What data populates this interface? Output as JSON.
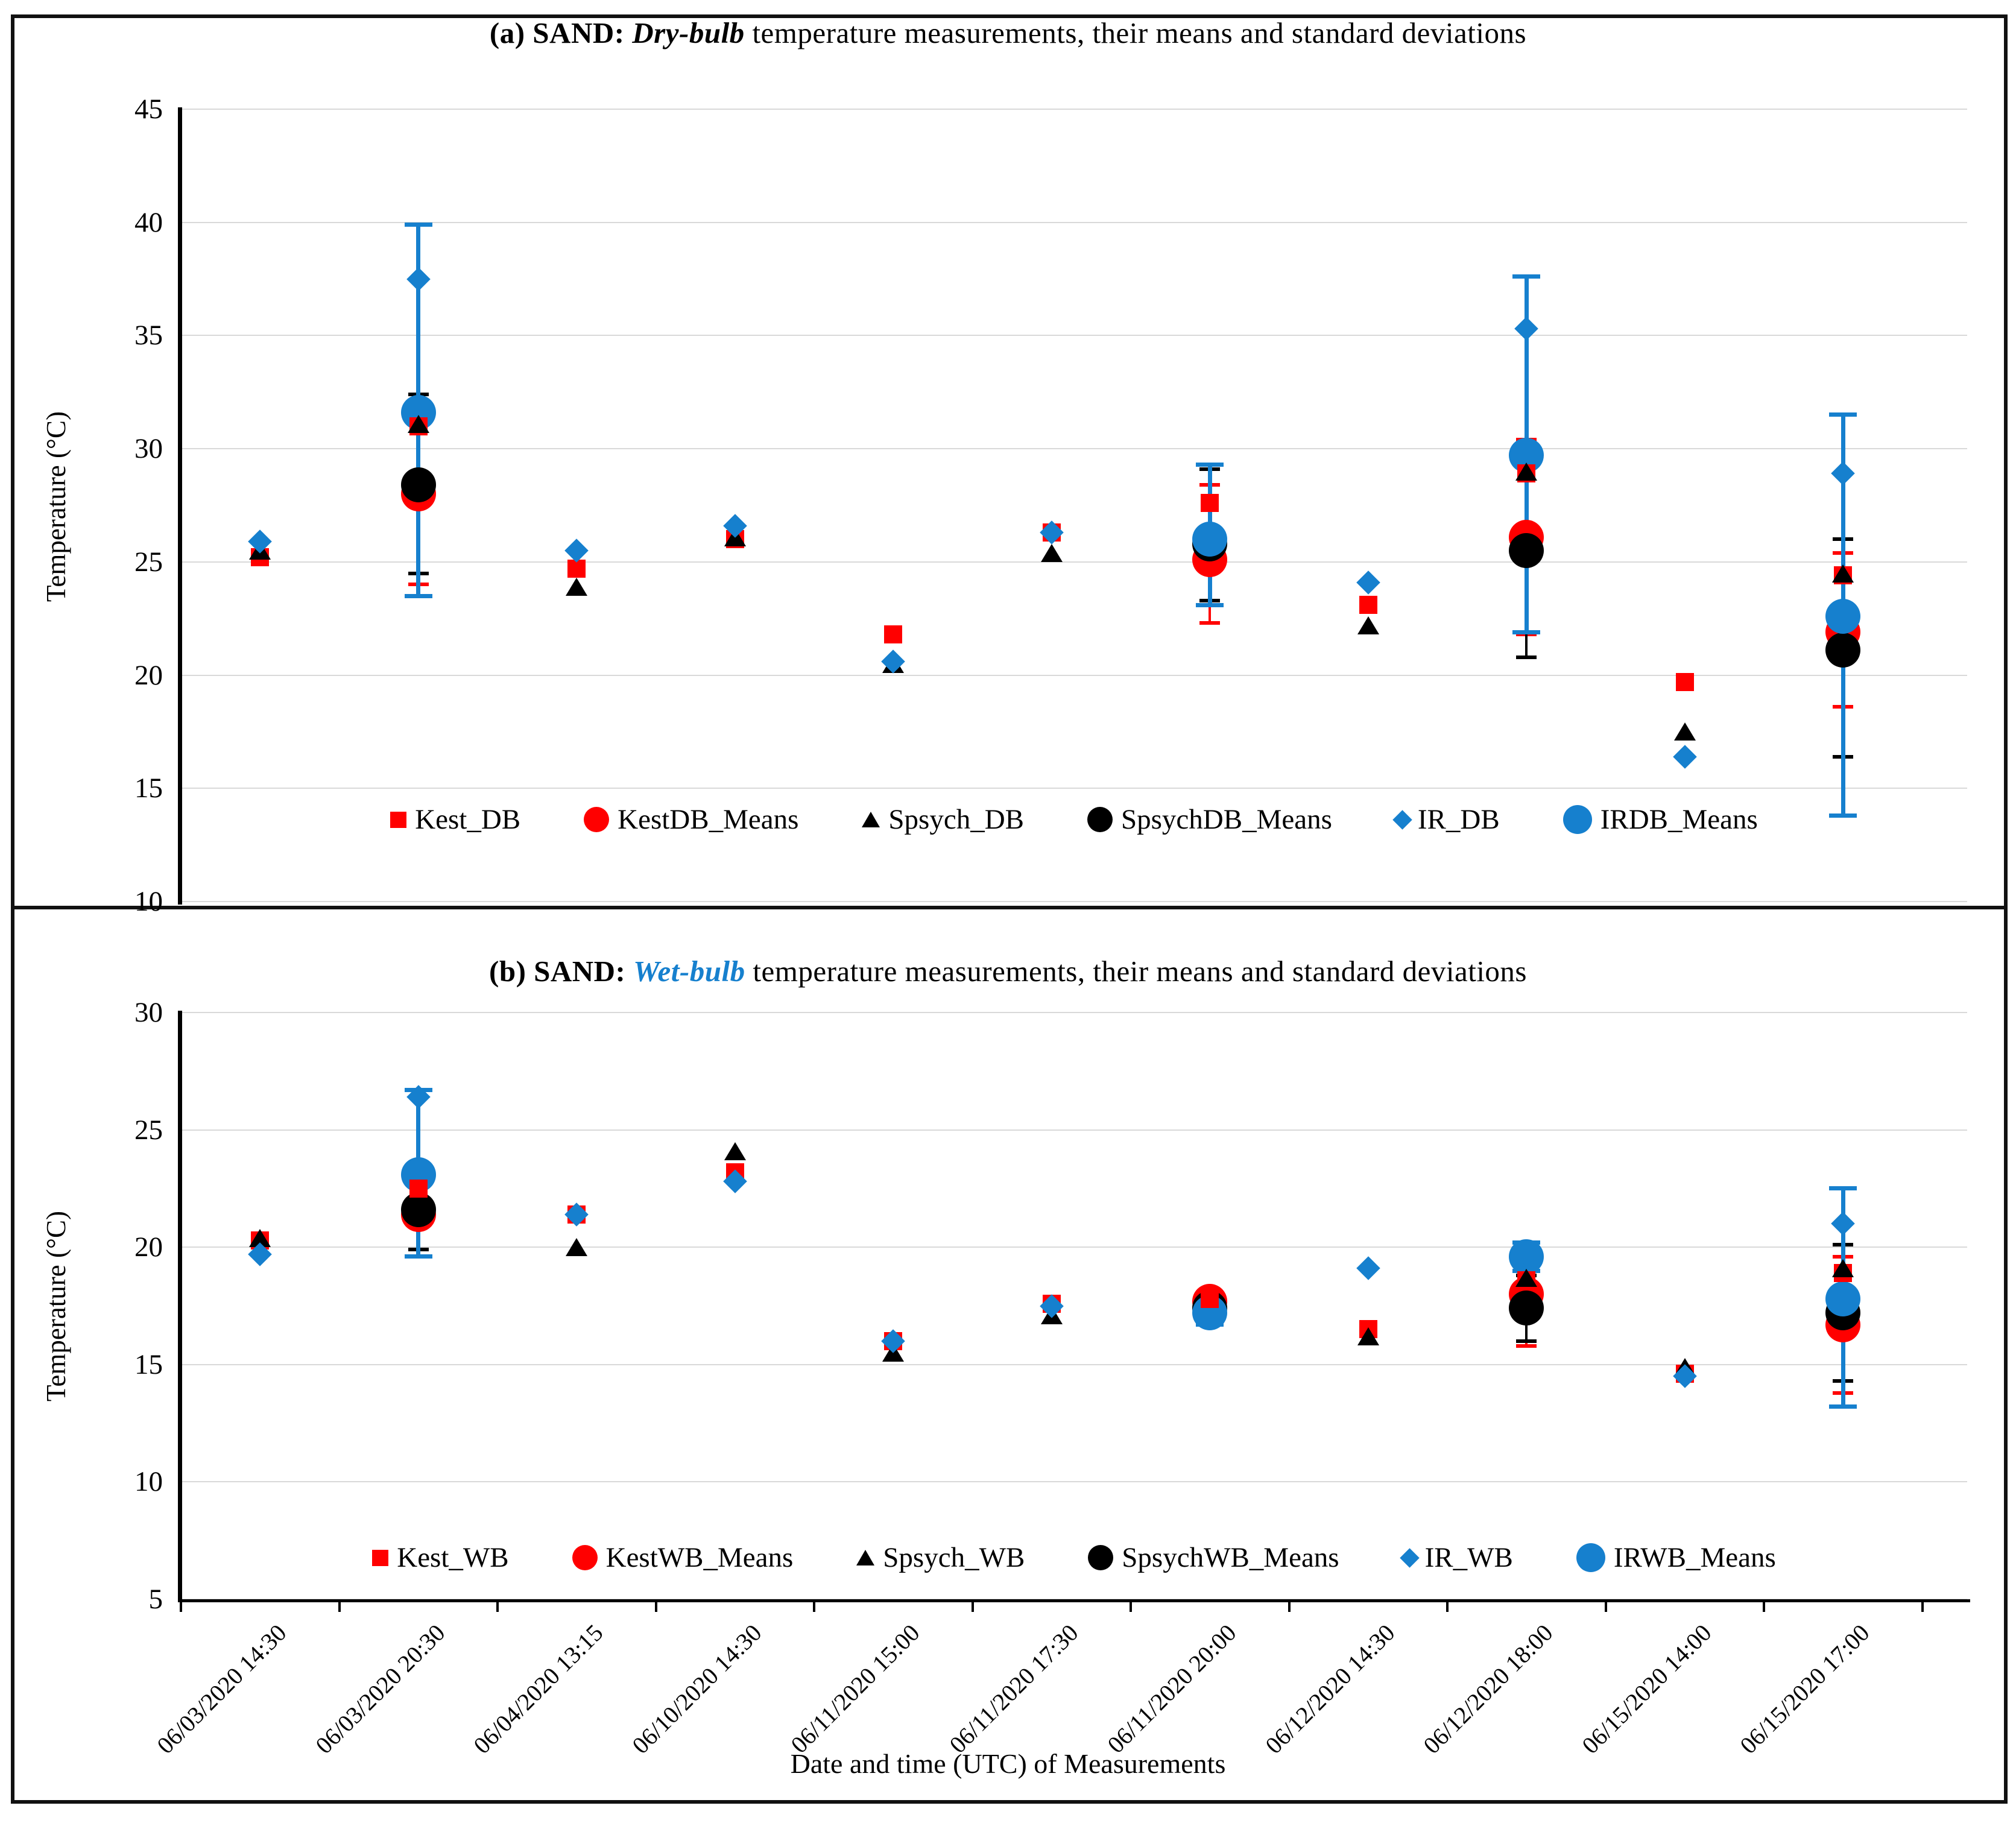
{
  "figure": {
    "x_axis_label": "Date and time (UTC) of Measurements",
    "categories": [
      "06/03/2020 14:30",
      "06/03/2020 20:30",
      "06/04/2020 13:15",
      "06/10/2020 14:30",
      "06/11/2020 15:00",
      "06/11/2020 17:30",
      "06/11/2020 20:00",
      "06/12/2020 14:30",
      "06/12/2020 18:00",
      "06/15/2020 14:00",
      "06/15/2020 17:00"
    ],
    "colors": {
      "red": "#FF0000",
      "black": "#000000",
      "blue": "#1680CE",
      "grid": "#D9D9D9",
      "axis": "#000000"
    }
  },
  "chart_data": [
    {
      "type": "scatter",
      "panel": "a",
      "title_prefix": "(a) SAND: ",
      "title_emph": "Dry-bulb",
      "title_rest": " temperature measurements, their means and standard deviations",
      "title_emph_color": "#000000",
      "ylabel": "Temperature (°C)",
      "ylim": [
        10,
        45
      ],
      "yticks": [
        45,
        40,
        35,
        30,
        25,
        20,
        15,
        10
      ],
      "grid": true,
      "legend_position": "bottom-inside",
      "legend": [
        "Kest_DB",
        "KestDB_Means",
        "Spsych_DB",
        "SpsychDB_Means",
        "IR_DB",
        "IRDB_Means"
      ],
      "series": [
        {
          "name": "Kest_DB",
          "marker": "square",
          "color": "#FF0000",
          "role": "points",
          "values": [
            25.2,
            31.0,
            24.7,
            26.0,
            21.8,
            26.3,
            27.6,
            23.1,
            28.9,
            19.7,
            24.4
          ]
        },
        {
          "name": "Spsych_DB",
          "marker": "triangle",
          "color": "#000000",
          "role": "points",
          "values": [
            25.5,
            31.1,
            23.9,
            26.1,
            20.5,
            25.4,
            null,
            22.2,
            29.0,
            17.5,
            24.5
          ]
        },
        {
          "name": "IR_DB",
          "marker": "diamond",
          "color": "#1680CE",
          "role": "points",
          "values": [
            25.9,
            37.5,
            25.5,
            26.6,
            20.6,
            26.3,
            null,
            24.1,
            35.3,
            16.4,
            28.9
          ]
        },
        {
          "name": "KestDB_Means",
          "marker": "circle",
          "color": "#FF0000",
          "role": "means",
          "values": [
            null,
            28.0,
            null,
            null,
            null,
            null,
            25.1,
            null,
            26.1,
            null,
            21.9
          ],
          "err_low": [
            null,
            24.0,
            null,
            null,
            null,
            null,
            22.3,
            null,
            21.8,
            null,
            18.6
          ],
          "err_high": [
            null,
            32.0,
            null,
            null,
            null,
            null,
            28.4,
            null,
            30.4,
            null,
            25.4
          ]
        },
        {
          "name": "SpsychDB_Means",
          "marker": "circle",
          "color": "#000000",
          "role": "means",
          "values": [
            null,
            28.4,
            null,
            null,
            null,
            null,
            25.8,
            null,
            25.5,
            null,
            21.1
          ],
          "err_low": [
            null,
            24.5,
            null,
            null,
            null,
            null,
            23.3,
            null,
            20.8,
            null,
            16.4
          ],
          "err_high": [
            null,
            32.4,
            null,
            null,
            null,
            null,
            29.1,
            null,
            30.2,
            null,
            26.0
          ]
        },
        {
          "name": "IRDB_Means",
          "marker": "circle",
          "color": "#1680CE",
          "role": "means",
          "values": [
            null,
            31.6,
            null,
            null,
            null,
            null,
            26.0,
            null,
            29.7,
            null,
            22.6
          ],
          "err_low": [
            null,
            23.5,
            null,
            null,
            null,
            null,
            23.1,
            null,
            21.9,
            null,
            13.8
          ],
          "err_high": [
            null,
            39.9,
            null,
            null,
            null,
            null,
            29.3,
            null,
            37.6,
            null,
            31.5
          ]
        }
      ]
    },
    {
      "type": "scatter",
      "panel": "b",
      "title_prefix": "(b) SAND: ",
      "title_emph": "Wet-bulb",
      "title_rest": " temperature measurements, their means and standard deviations",
      "title_emph_color": "#1680CE",
      "ylabel": "Temperature (°C)",
      "ylim": [
        5,
        30
      ],
      "yticks": [
        30,
        25,
        20,
        15,
        10,
        5
      ],
      "grid": true,
      "legend_position": "bottom-inside",
      "legend": [
        "Kest_WB",
        "KestWB_Means",
        "Spsych_WB",
        "SpsychWB_Means",
        "IR_WB",
        "IRWB_Means"
      ],
      "series": [
        {
          "name": "Kest_WB",
          "marker": "square",
          "color": "#FF0000",
          "role": "points",
          "values": [
            20.3,
            22.5,
            21.4,
            23.2,
            16.0,
            17.6,
            17.8,
            16.5,
            18.6,
            14.6,
            18.9
          ]
        },
        {
          "name": "Spsych_WB",
          "marker": "triangle",
          "color": "#000000",
          "role": "points",
          "values": [
            20.4,
            null,
            20.0,
            24.1,
            15.5,
            17.1,
            null,
            16.2,
            18.7,
            14.9,
            19.1
          ]
        },
        {
          "name": "IR_WB",
          "marker": "diamond",
          "color": "#1680CE",
          "role": "points",
          "values": [
            19.7,
            26.4,
            21.4,
            22.8,
            16.0,
            17.5,
            null,
            19.1,
            19.7,
            14.5,
            21.0
          ]
        },
        {
          "name": "KestWB_Means",
          "marker": "circle",
          "color": "#FF0000",
          "role": "means",
          "values": [
            null,
            21.4,
            null,
            null,
            null,
            null,
            17.7,
            null,
            18.0,
            null,
            16.7
          ],
          "err_low": [
            null,
            19.9,
            null,
            null,
            null,
            null,
            17.2,
            null,
            15.8,
            null,
            13.8
          ],
          "err_high": [
            null,
            22.9,
            null,
            null,
            null,
            null,
            18.2,
            null,
            20.2,
            null,
            19.6
          ]
        },
        {
          "name": "SpsychWB_Means",
          "marker": "circle",
          "color": "#000000",
          "role": "means",
          "values": [
            null,
            21.6,
            null,
            null,
            null,
            null,
            17.4,
            null,
            17.4,
            null,
            17.2
          ],
          "err_low": [
            null,
            19.9,
            null,
            null,
            null,
            null,
            16.9,
            null,
            16.0,
            null,
            14.3
          ],
          "err_high": [
            null,
            23.6,
            null,
            null,
            null,
            null,
            17.9,
            null,
            18.8,
            null,
            20.1
          ]
        },
        {
          "name": "IRWB_Means",
          "marker": "circle",
          "color": "#1680CE",
          "role": "means",
          "values": [
            null,
            23.1,
            null,
            null,
            null,
            null,
            17.2,
            null,
            19.6,
            null,
            17.8
          ],
          "err_low": [
            null,
            19.6,
            null,
            null,
            null,
            null,
            16.7,
            null,
            19.0,
            null,
            13.2
          ],
          "err_high": [
            null,
            26.7,
            null,
            null,
            null,
            null,
            17.7,
            null,
            20.2,
            null,
            22.5
          ]
        }
      ]
    }
  ]
}
